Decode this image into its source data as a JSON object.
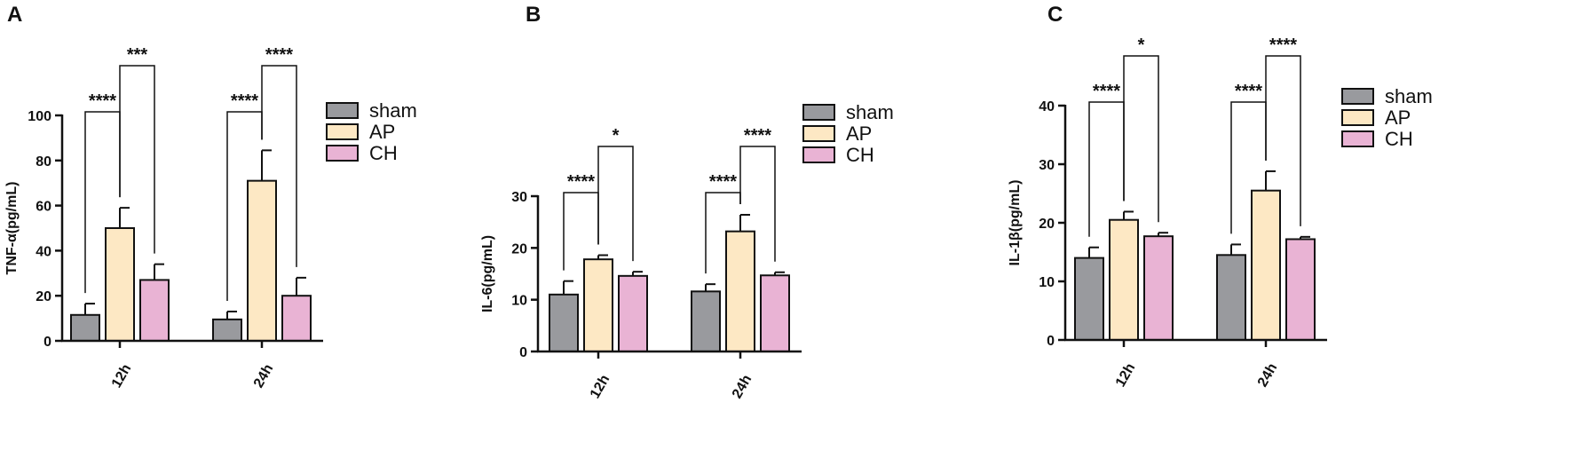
{
  "colors": {
    "sham": "#999a9e",
    "AP": "#fde8c4",
    "CH": "#e9b3d4",
    "axis": "#111111"
  },
  "chart_data": [
    {
      "type": "bar",
      "panel": "A",
      "categories": [
        "12h",
        "24h"
      ],
      "series": [
        {
          "name": "sham",
          "values": [
            11.5,
            9.5
          ],
          "errors": [
            5,
            3.5
          ]
        },
        {
          "name": "AP",
          "values": [
            50,
            71
          ],
          "errors": [
            9,
            13.5
          ]
        },
        {
          "name": "CH",
          "values": [
            27,
            20
          ],
          "errors": [
            7,
            8
          ]
        }
      ],
      "ylabel": "TNF-α(pg/mL)",
      "ylim": [
        0,
        100
      ],
      "yticks": [
        0,
        20,
        40,
        60,
        80,
        100
      ],
      "legend": [
        "sham",
        "AP",
        "CH"
      ],
      "legend_position": "right",
      "annotations": [
        {
          "category": "12h",
          "from": "sham",
          "to": "AP",
          "label": "****",
          "level": 1
        },
        {
          "category": "12h",
          "from": "AP",
          "to": "CH",
          "label": "***",
          "level": 2
        },
        {
          "category": "24h",
          "from": "sham",
          "to": "AP",
          "label": "****",
          "level": 1
        },
        {
          "category": "24h",
          "from": "AP",
          "to": "CH",
          "label": "****",
          "level": 2
        }
      ]
    },
    {
      "type": "bar",
      "panel": "B",
      "categories": [
        "12h",
        "24h"
      ],
      "series": [
        {
          "name": "sham",
          "values": [
            11,
            11.6
          ],
          "errors": [
            2.6,
            1.4
          ]
        },
        {
          "name": "AP",
          "values": [
            17.8,
            23.2
          ],
          "errors": [
            0.8,
            3.2
          ]
        },
        {
          "name": "CH",
          "values": [
            14.6,
            14.7
          ],
          "errors": [
            0.8,
            0.6
          ]
        }
      ],
      "ylabel": "IL-6(pg/mL)",
      "ylim": [
        0,
        30
      ],
      "yticks": [
        0,
        10,
        20,
        30
      ],
      "legend": [
        "sham",
        "AP",
        "CH"
      ],
      "legend_position": "right",
      "annotations": [
        {
          "category": "12h",
          "from": "sham",
          "to": "AP",
          "label": "****",
          "level": 1
        },
        {
          "category": "12h",
          "from": "AP",
          "to": "CH",
          "label": "*",
          "level": 2
        },
        {
          "category": "24h",
          "from": "sham",
          "to": "AP",
          "label": "****",
          "level": 1
        },
        {
          "category": "24h",
          "from": "AP",
          "to": "CH",
          "label": "****",
          "level": 2
        }
      ]
    },
    {
      "type": "bar",
      "panel": "C",
      "categories": [
        "12h",
        "24h"
      ],
      "series": [
        {
          "name": "sham",
          "values": [
            14,
            14.5
          ],
          "errors": [
            1.8,
            1.8
          ]
        },
        {
          "name": "AP",
          "values": [
            20.5,
            25.5
          ],
          "errors": [
            1.4,
            3.3
          ]
        },
        {
          "name": "CH",
          "values": [
            17.7,
            17.2
          ],
          "errors": [
            0.6,
            0.4
          ]
        }
      ],
      "ylabel": "IL-1β(pg/mL)",
      "ylim": [
        0,
        40
      ],
      "yticks": [
        0,
        10,
        20,
        30,
        40
      ],
      "legend": [
        "sham",
        "AP",
        "CH"
      ],
      "legend_position": "right",
      "annotations": [
        {
          "category": "12h",
          "from": "sham",
          "to": "AP",
          "label": "****",
          "level": 1
        },
        {
          "category": "12h",
          "from": "AP",
          "to": "CH",
          "label": "*",
          "level": 2
        },
        {
          "category": "24h",
          "from": "sham",
          "to": "AP",
          "label": "****",
          "level": 1
        },
        {
          "category": "24h",
          "from": "AP",
          "to": "CH",
          "label": "****",
          "level": 2
        }
      ]
    }
  ]
}
